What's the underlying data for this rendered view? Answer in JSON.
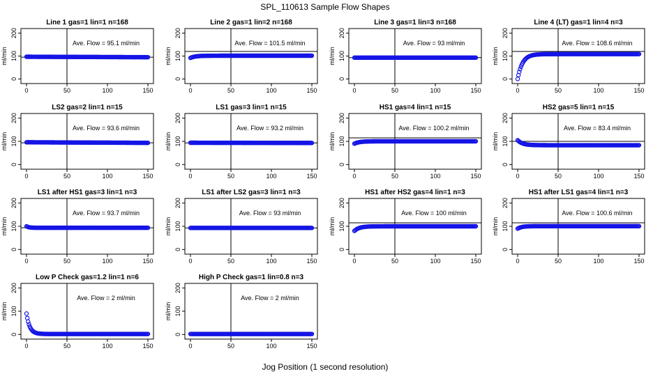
{
  "title": "SPL_110613  Sample Flow Shapes",
  "xlabel": "Jog Position (1 second resolution)",
  "chart_data": [
    {
      "type": "scatter",
      "title": "Line 1 gas=1 lin=1 n=168",
      "annotation": "Ave. Flow =  95.1  ml/min",
      "ylabel": "ml/min",
      "xlim": [
        0,
        150
      ],
      "ylim": [
        -20,
        220
      ],
      "x_ticks": [
        0,
        50,
        100,
        150
      ],
      "y_ticks": [
        0,
        100,
        200
      ],
      "vline": 50,
      "hline": 95.1,
      "shape": {
        "start": 97,
        "end": 95,
        "tau": 0
      }
    },
    {
      "type": "scatter",
      "title": "Line 2 gas=1 lin=2 n=168",
      "annotation": "Ave. Flow =  101.5  ml/min",
      "ylabel": "ml/min",
      "xlim": [
        0,
        150
      ],
      "ylim": [
        -20,
        220
      ],
      "x_ticks": [
        0,
        50,
        100,
        150
      ],
      "y_ticks": [
        0,
        100,
        200
      ],
      "vline": 50,
      "hline": 120,
      "shape": {
        "start": 92,
        "end": 101.5,
        "tau": 6
      }
    },
    {
      "type": "scatter",
      "title": "Line 3 gas=1 lin=3 n=168",
      "annotation": "Ave. Flow =  93  ml/min",
      "ylabel": "ml/min",
      "xlim": [
        0,
        150
      ],
      "ylim": [
        -20,
        220
      ],
      "x_ticks": [
        0,
        50,
        100,
        150
      ],
      "y_ticks": [
        0,
        100,
        200
      ],
      "vline": 50,
      "hline": 93,
      "shape": {
        "start": 93,
        "end": 93,
        "tau": 0
      }
    },
    {
      "type": "scatter",
      "title": "Line 4 (LT) gas=1 lin=4 n=3",
      "annotation": "Ave. Flow =  108.6  ml/min",
      "ylabel": "ml/min",
      "xlim": [
        0,
        150
      ],
      "ylim": [
        -20,
        220
      ],
      "x_ticks": [
        0,
        50,
        100,
        150
      ],
      "y_ticks": [
        0,
        100,
        200
      ],
      "vline": 50,
      "hline": 120,
      "shape": {
        "start": 0,
        "end": 108.6,
        "tau": 6
      }
    },
    {
      "type": "scatter",
      "title": "LS2 gas=2 lin=1 n=15",
      "annotation": "Ave. Flow =  93.6  ml/min",
      "ylabel": "ml/min",
      "xlim": [
        0,
        150
      ],
      "ylim": [
        -20,
        220
      ],
      "x_ticks": [
        0,
        50,
        100,
        150
      ],
      "y_ticks": [
        0,
        100,
        200
      ],
      "vline": 50,
      "hline": 93.6,
      "shape": {
        "start": 96,
        "end": 93.6,
        "tau": 0
      }
    },
    {
      "type": "scatter",
      "title": "LS1 gas=3 lin=1 n=15",
      "annotation": "Ave. Flow =  93.2  ml/min",
      "ylabel": "ml/min",
      "xlim": [
        0,
        150
      ],
      "ylim": [
        -20,
        220
      ],
      "x_ticks": [
        0,
        50,
        100,
        150
      ],
      "y_ticks": [
        0,
        100,
        200
      ],
      "vline": 50,
      "hline": 93.2,
      "shape": {
        "start": 94,
        "end": 93.2,
        "tau": 0
      }
    },
    {
      "type": "scatter",
      "title": "HS1 gas=4 lin=1 n=15",
      "annotation": "Ave. Flow =  100.2  ml/min",
      "ylabel": "ml/min",
      "xlim": [
        0,
        150
      ],
      "ylim": [
        -20,
        220
      ],
      "x_ticks": [
        0,
        50,
        100,
        150
      ],
      "y_ticks": [
        0,
        100,
        200
      ],
      "vline": 50,
      "hline": 115,
      "shape": {
        "start": 90,
        "end": 100.2,
        "tau": 6
      }
    },
    {
      "type": "scatter",
      "title": "HS2 gas=5 lin=1 n=15",
      "annotation": "Ave. Flow =  83.4  ml/min",
      "ylabel": "ml/min",
      "xlim": [
        0,
        150
      ],
      "ylim": [
        -20,
        220
      ],
      "x_ticks": [
        0,
        50,
        100,
        150
      ],
      "y_ticks": [
        0,
        100,
        200
      ],
      "vline": 50,
      "hline": 100,
      "shape": {
        "start": 105,
        "end": 83.4,
        "tau": 6
      }
    },
    {
      "type": "scatter",
      "title": "LS1 after HS1 gas=3 lin=1 n=3",
      "annotation": "Ave. Flow =  93.7  ml/min",
      "ylabel": "ml/min",
      "xlim": [
        0,
        150
      ],
      "ylim": [
        -20,
        220
      ],
      "x_ticks": [
        0,
        50,
        100,
        150
      ],
      "y_ticks": [
        0,
        100,
        200
      ],
      "vline": 50,
      "hline": 93.7,
      "shape": {
        "start": 100,
        "end": 93.7,
        "tau": 3
      }
    },
    {
      "type": "scatter",
      "title": "LS1 after LS2 gas=3 lin=1 n=3",
      "annotation": "Ave. Flow =  93  ml/min",
      "ylabel": "ml/min",
      "xlim": [
        0,
        150
      ],
      "ylim": [
        -20,
        220
      ],
      "x_ticks": [
        0,
        50,
        100,
        150
      ],
      "y_ticks": [
        0,
        100,
        200
      ],
      "vline": 50,
      "hline": 93,
      "shape": {
        "start": 93,
        "end": 93,
        "tau": 0
      }
    },
    {
      "type": "scatter",
      "title": "HS1 after HS2 gas=4 lin=1 n=3",
      "annotation": "Ave. Flow =  100  ml/min",
      "ylabel": "ml/min",
      "xlim": [
        0,
        150
      ],
      "ylim": [
        -20,
        220
      ],
      "x_ticks": [
        0,
        50,
        100,
        150
      ],
      "y_ticks": [
        0,
        100,
        200
      ],
      "vline": 50,
      "hline": 115,
      "shape": {
        "start": 80,
        "end": 100,
        "tau": 6
      }
    },
    {
      "type": "scatter",
      "title": "HS1 after LS1 gas=4 lin=1 n=3",
      "annotation": "Ave. Flow =  100.6  ml/min",
      "ylabel": "ml/min",
      "xlim": [
        0,
        150
      ],
      "ylim": [
        -20,
        220
      ],
      "x_ticks": [
        0,
        50,
        100,
        150
      ],
      "y_ticks": [
        0,
        100,
        200
      ],
      "vline": 50,
      "hline": 115,
      "shape": {
        "start": 90,
        "end": 100.6,
        "tau": 5
      }
    },
    {
      "type": "scatter",
      "title": "Low P Check gas=1.2 lin=1 n=6",
      "annotation": "Ave. Flow =  2  ml/min",
      "ylabel": "ml/min",
      "xlim": [
        0,
        150
      ],
      "ylim": [
        -20,
        220
      ],
      "x_ticks": [
        0,
        50,
        100,
        150
      ],
      "y_ticks": [
        0,
        100,
        200
      ],
      "vline": 50,
      "hline": -20,
      "shape": {
        "start": 90,
        "end": 2,
        "tau": 4
      }
    },
    {
      "type": "scatter",
      "title": "High P Check gas=1 lin=0.8 n=3",
      "annotation": "Ave. Flow =  2  ml/min",
      "ylabel": "ml/min",
      "xlim": [
        0,
        150
      ],
      "ylim": [
        -20,
        220
      ],
      "x_ticks": [
        0,
        50,
        100,
        150
      ],
      "y_ticks": [
        0,
        100,
        200
      ],
      "vline": 50,
      "hline": -20,
      "shape": {
        "start": 2,
        "end": 2,
        "tau": 0
      }
    }
  ],
  "colors": {
    "points": "#1515e6",
    "lines": "#000000"
  }
}
